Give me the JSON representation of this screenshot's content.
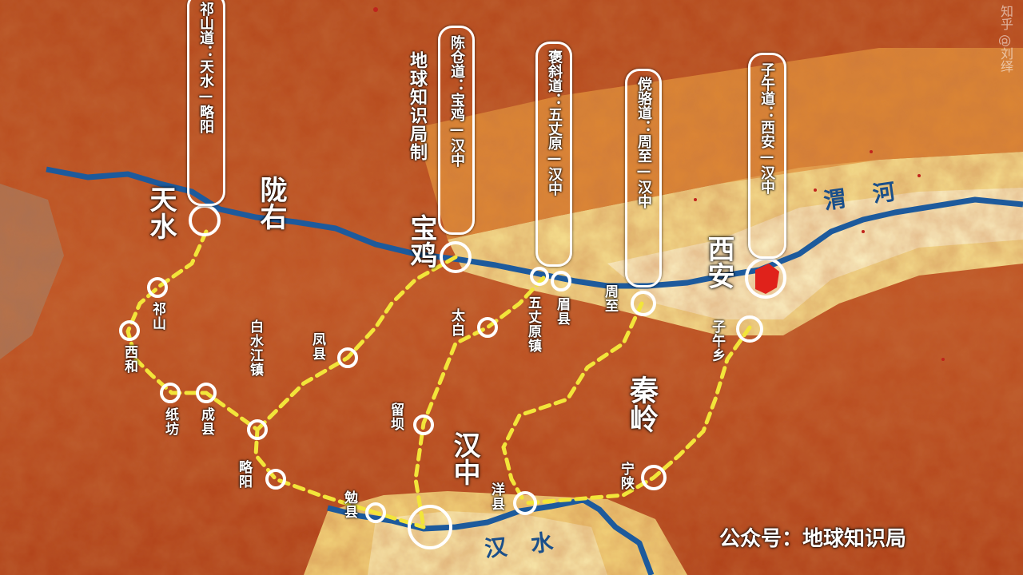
{
  "colors": {
    "river": "#1d5a9c",
    "route": "#f2e53a",
    "node": "#ffffff",
    "box": "#ffffff"
  },
  "routes": [
    {
      "id": "qishan",
      "text": "祁山道：天水—略阳"
    },
    {
      "id": "chencang",
      "text": "陈仓道：宝鸡—汉中"
    },
    {
      "id": "baoxie",
      "text": "褒斜道：五丈原—汉中"
    },
    {
      "id": "tangluo",
      "text": "傥骆道：周至—汉中"
    },
    {
      "id": "ziwu",
      "text": "子午道：西安—汉中"
    }
  ],
  "places": {
    "tianshui": "天水",
    "baoji": "宝鸡",
    "xian": "西安",
    "hanzhong": "汉中",
    "qishan": "祁山",
    "xihe": "西和",
    "zhifang": "纸坊",
    "chengxian": "成县",
    "baishuijiang": "白水江镇",
    "fengxian": "凤县",
    "lueyang": "略阳",
    "mianxian": "勉县",
    "liuba": "留坝",
    "taibai": "太白",
    "wuzhangyuan": "五丈原镇",
    "meixian": "眉县",
    "zhouzhi": "周至",
    "ziwuxiang": "子午乡",
    "yangxian": "洋县",
    "ningshan": "宁陕"
  },
  "regions": {
    "longyou": "陇右",
    "qinling": "秦岭"
  },
  "rivers": {
    "weihe": "渭河",
    "hanshui": "汉水"
  },
  "note": "地球知识局制",
  "credit": "公众号：地球知识局",
  "watermark": "知乎 @刘绎"
}
